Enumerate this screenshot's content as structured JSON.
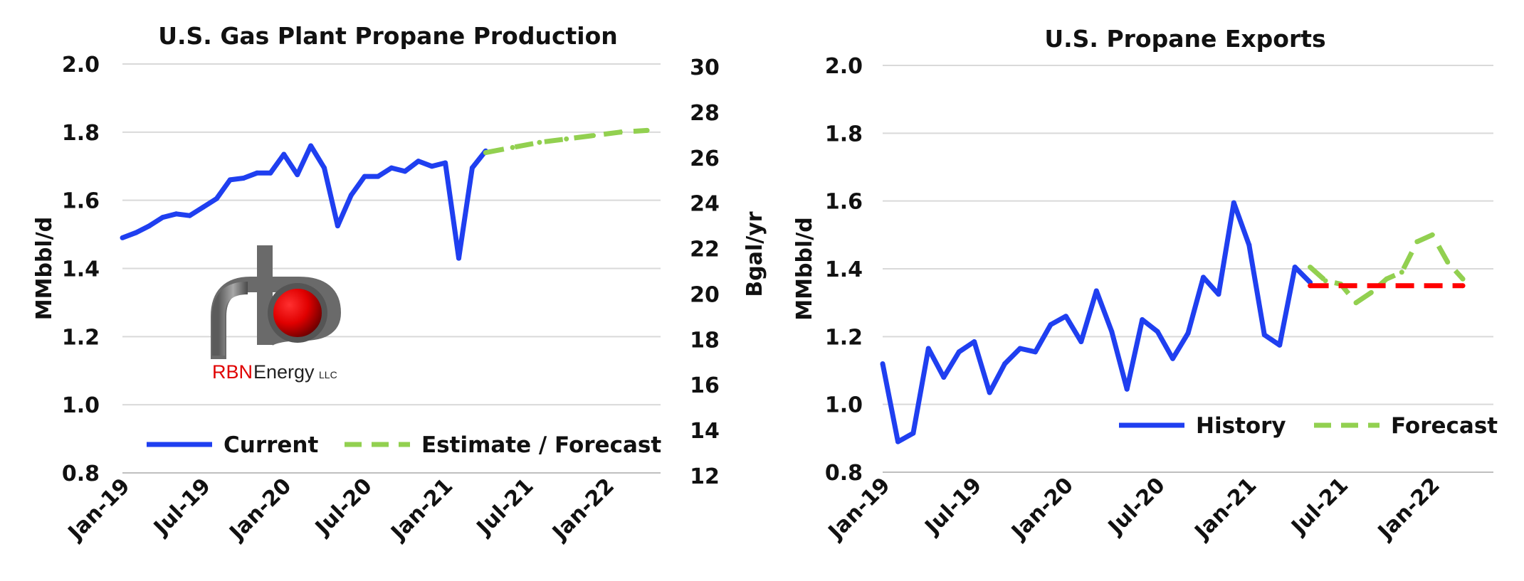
{
  "colors": {
    "history": "#1f3ff0",
    "forecast": "#92d050",
    "flat_line": "#ff0000",
    "grid": "#d9d9d9"
  },
  "logo": {
    "text_rbn": "RBN",
    "text_energy": "Energy",
    "text_llc": "LLC"
  },
  "chart_data": [
    {
      "type": "line",
      "title": "U.S. Gas Plant Propane Production",
      "ylabel": "MMbbl/d",
      "ylabel2": "Bgal/yr",
      "ylim": [
        0.8,
        2.0
      ],
      "yticks": [
        "0.8",
        "1.0",
        "1.2",
        "1.4",
        "1.6",
        "1.8",
        "2.0"
      ],
      "ylim2": [
        12,
        30
      ],
      "yticks2": [
        "12",
        "14",
        "16",
        "18",
        "20",
        "22",
        "24",
        "26",
        "28",
        "30"
      ],
      "xticks": [
        "Jan-19",
        "Jul-19",
        "Jan-20",
        "Jul-20",
        "Jan-21",
        "Jul-21",
        "Jan-22"
      ],
      "grid": true,
      "legend_position": "bottom",
      "series": [
        {
          "name": "Current",
          "style": "solid",
          "x": [
            "2019-01",
            "2019-02",
            "2019-03",
            "2019-04",
            "2019-05",
            "2019-06",
            "2019-07",
            "2019-08",
            "2019-09",
            "2019-10",
            "2019-11",
            "2019-12",
            "2020-01",
            "2020-02",
            "2020-03",
            "2020-04",
            "2020-05",
            "2020-06",
            "2020-07",
            "2020-08",
            "2020-09",
            "2020-10",
            "2020-11",
            "2020-12",
            "2021-01",
            "2021-02",
            "2021-03",
            "2021-04"
          ],
          "values": [
            1.49,
            1.505,
            1.525,
            1.55,
            1.56,
            1.555,
            1.58,
            1.605,
            1.66,
            1.665,
            1.68,
            1.68,
            1.735,
            1.675,
            1.76,
            1.695,
            1.525,
            1.615,
            1.67,
            1.67,
            1.695,
            1.685,
            1.715,
            1.7,
            1.71,
            1.43,
            1.695,
            1.745
          ]
        },
        {
          "name": "Estimate / Forecast",
          "style": "dashed",
          "x": [
            "2021-04",
            "2021-06",
            "2021-08",
            "2021-10",
            "2021-12",
            "2022-02",
            "2022-04"
          ],
          "values": [
            1.74,
            1.755,
            1.77,
            1.78,
            1.79,
            1.8,
            1.805
          ]
        }
      ]
    },
    {
      "type": "line",
      "title": "U.S. Propane Exports",
      "ylabel": "MMbbl/d",
      "ylim": [
        0.8,
        2.0
      ],
      "yticks": [
        "0.8",
        "1.0",
        "1.2",
        "1.4",
        "1.6",
        "1.8",
        "2.0"
      ],
      "xticks": [
        "Jan-19",
        "Jul-19",
        "Jan-20",
        "Jul-20",
        "Jan-21",
        "Jul-21",
        "Jan-22"
      ],
      "grid": true,
      "legend_position": "bottom-right",
      "series": [
        {
          "name": "History",
          "style": "solid",
          "x": [
            "2019-01",
            "2019-02",
            "2019-03",
            "2019-04",
            "2019-05",
            "2019-06",
            "2019-07",
            "2019-08",
            "2019-09",
            "2019-10",
            "2019-11",
            "2019-12",
            "2020-01",
            "2020-02",
            "2020-03",
            "2020-04",
            "2020-05",
            "2020-06",
            "2020-07",
            "2020-08",
            "2020-09",
            "2020-10",
            "2020-11",
            "2020-12",
            "2021-01",
            "2021-02",
            "2021-03",
            "2021-04",
            "2021-05"
          ],
          "values": [
            1.12,
            0.89,
            0.915,
            1.165,
            1.08,
            1.155,
            1.185,
            1.035,
            1.12,
            1.165,
            1.155,
            1.235,
            1.26,
            1.185,
            1.335,
            1.215,
            1.045,
            1.25,
            1.215,
            1.135,
            1.21,
            1.375,
            1.325,
            1.595,
            1.47,
            1.205,
            1.175,
            1.405,
            1.36
          ]
        },
        {
          "name": "Forecast",
          "style": "dashed",
          "x": [
            "2021-05",
            "2021-06",
            "2021-07",
            "2021-08",
            "2021-09",
            "2021-10",
            "2021-11",
            "2021-12",
            "2022-01",
            "2022-02",
            "2022-03"
          ],
          "values": [
            1.405,
            1.365,
            1.355,
            1.3,
            1.33,
            1.37,
            1.39,
            1.48,
            1.5,
            1.42,
            1.37
          ]
        },
        {
          "style": "dashed-flat",
          "x": [
            "2021-05",
            "2022-03"
          ],
          "values": [
            1.35,
            1.35
          ]
        }
      ]
    }
  ]
}
